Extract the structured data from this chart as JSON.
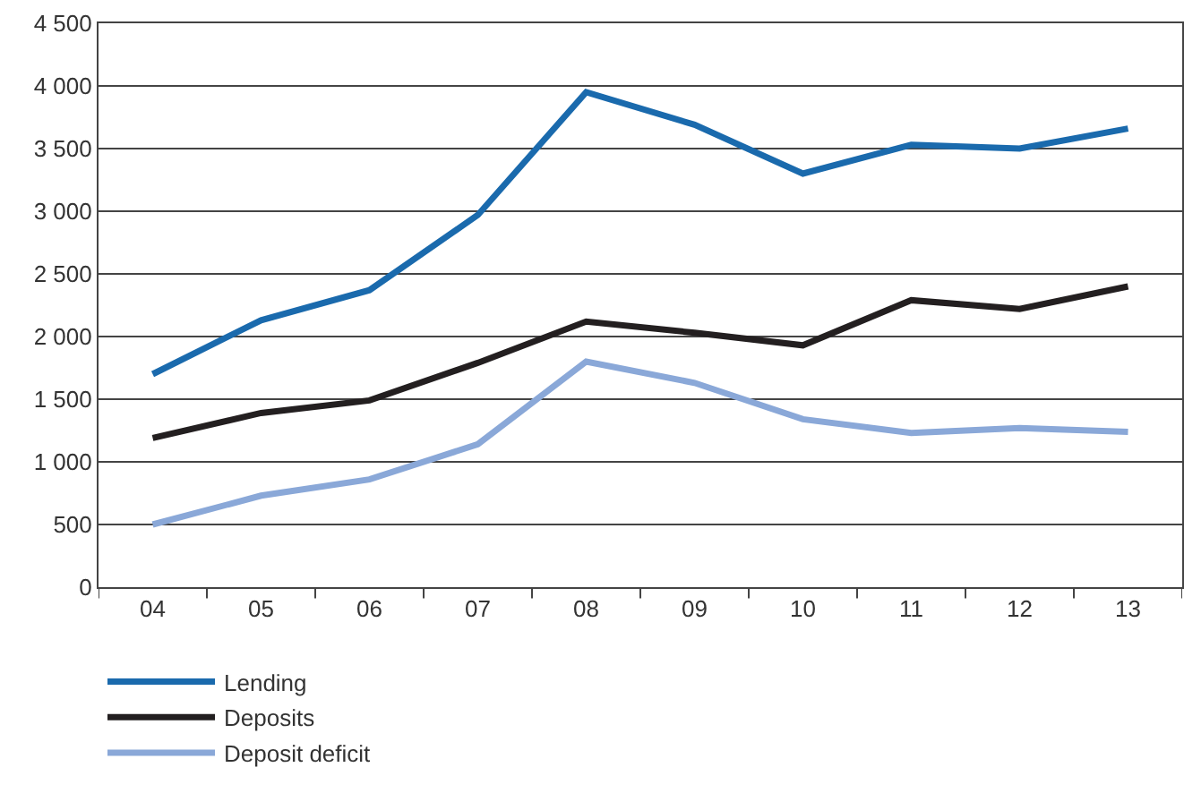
{
  "chart_data": {
    "type": "line",
    "categories": [
      "04",
      "05",
      "06",
      "07",
      "08",
      "09",
      "10",
      "11",
      "12",
      "13"
    ],
    "series": [
      {
        "name": "Lending",
        "color": "#1a6aad",
        "values": [
          1700,
          2130,
          2370,
          2970,
          3950,
          3690,
          3300,
          3530,
          3500,
          3660
        ]
      },
      {
        "name": "Deposits",
        "color": "#231f20",
        "values": [
          1190,
          1390,
          1490,
          1790,
          2120,
          2030,
          1930,
          2290,
          2220,
          2400
        ]
      },
      {
        "name": "Deposit deficit",
        "color": "#8aa8d8",
        "values": [
          500,
          730,
          860,
          1140,
          1800,
          1630,
          1340,
          1230,
          1270,
          1240
        ]
      }
    ],
    "ylim": [
      0,
      4500
    ],
    "yticks": [
      0,
      500,
      {
        "value": 1000,
        "label": "1 000"
      },
      {
        "value": 1500,
        "label": "1 500"
      },
      {
        "value": 2000,
        "label": "2 000"
      },
      {
        "value": 2500,
        "label": "2 500"
      },
      {
        "value": 3000,
        "label": "3 000"
      },
      {
        "value": 3500,
        "label": "3 500"
      },
      {
        "value": 4000,
        "label": "4 000"
      },
      {
        "value": 4500,
        "label": "4 500"
      }
    ],
    "grid": "y",
    "legend": "bottom",
    "marker": "none",
    "line_style": "solid"
  }
}
